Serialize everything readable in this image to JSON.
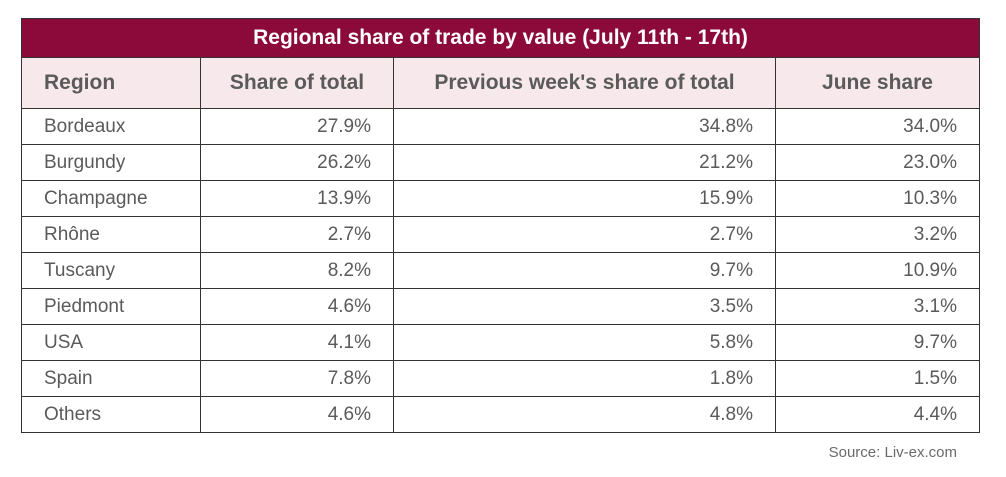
{
  "chart_data": {
    "type": "table",
    "title": "Regional share of trade by value (July 11th - 17th)",
    "columns": [
      "Region",
      "Share of total",
      "Previous week's share of total",
      "June share"
    ],
    "rows": [
      [
        "Bordeaux",
        "27.9%",
        "34.8%",
        "34.0%"
      ],
      [
        "Burgundy",
        "26.2%",
        "21.2%",
        "23.0%"
      ],
      [
        "Champagne",
        "13.9%",
        "15.9%",
        "10.3%"
      ],
      [
        "Rhône",
        "2.7%",
        "2.7%",
        "3.2%"
      ],
      [
        "Tuscany",
        "8.2%",
        "9.7%",
        "10.9%"
      ],
      [
        "Piedmont",
        "4.6%",
        "3.5%",
        "3.1%"
      ],
      [
        "USA",
        "4.1%",
        "5.8%",
        "9.7%"
      ],
      [
        "Spain",
        "7.8%",
        "1.8%",
        "1.5%"
      ],
      [
        "Others",
        "4.6%",
        "4.8%",
        "4.4%"
      ]
    ],
    "source": "Source: Liv-ex.com"
  },
  "colors": {
    "title_background": "#8b0a3a",
    "header_background": "#f7e8ec",
    "border": "#333333",
    "text": "#5a5a5a"
  }
}
